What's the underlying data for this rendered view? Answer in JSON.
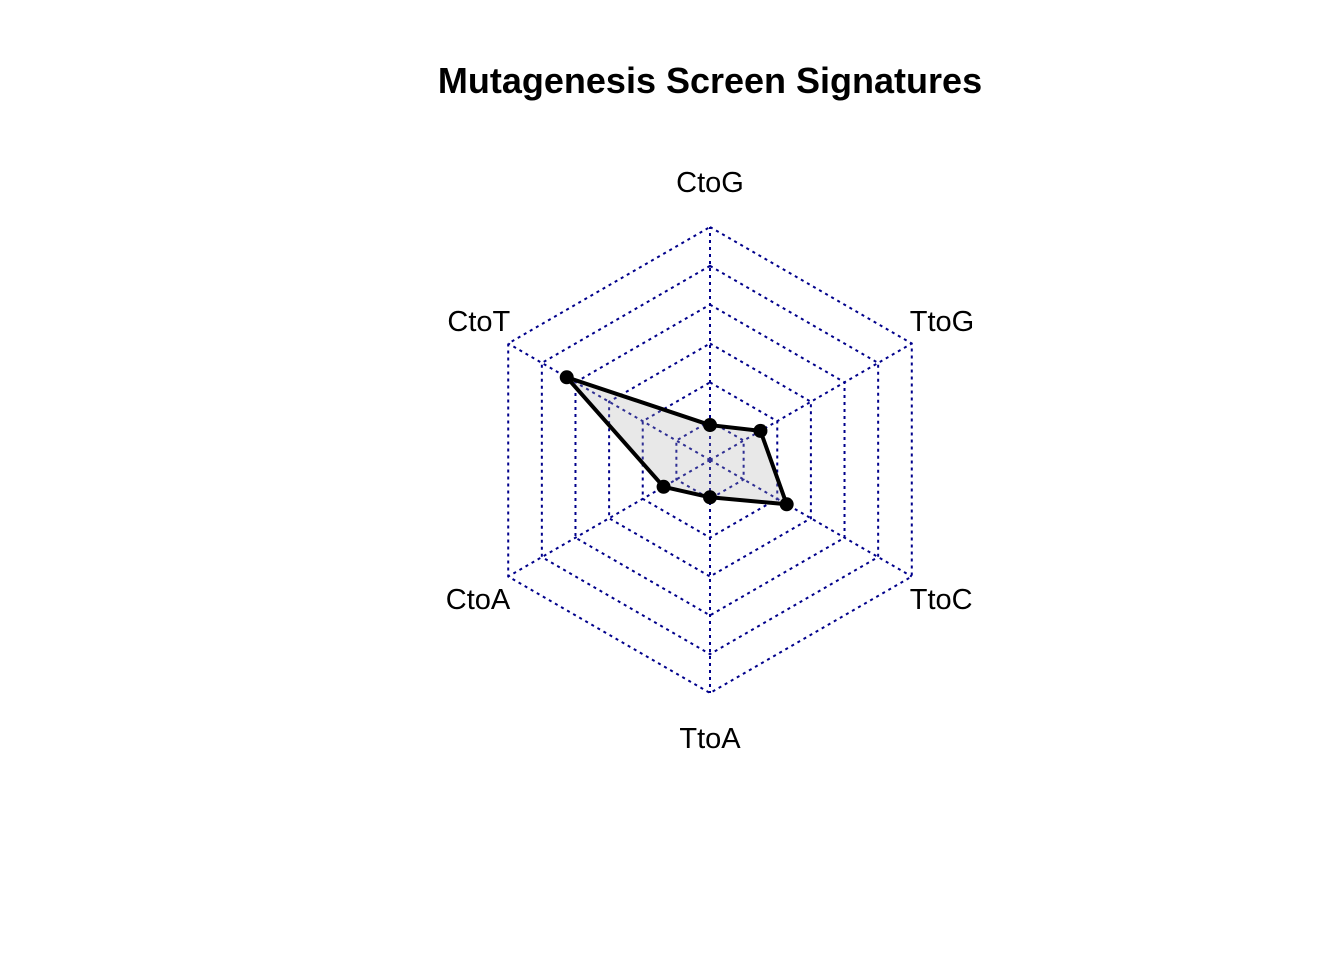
{
  "chart_data": {
    "type": "radar",
    "title": "Mutagenesis Screen Signatures",
    "axes": [
      "CtoG",
      "TtoG",
      "TtoC",
      "TtoA",
      "CtoA",
      "CtoT"
    ],
    "range": [
      0,
      1
    ],
    "grid_levels": 6,
    "series": [
      {
        "values": [
          0.15,
          0.25,
          0.38,
          0.16,
          0.23,
          0.71
        ],
        "fill": "#e8e8e8",
        "line_color": "#000000"
      }
    ],
    "grid_color": "#00008b",
    "grid": true,
    "legend": false
  }
}
